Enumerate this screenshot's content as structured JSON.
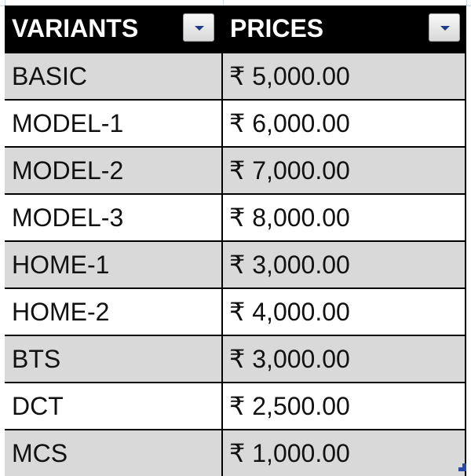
{
  "table": {
    "headers": [
      "VARIANTS",
      "PRICES"
    ],
    "rows": [
      {
        "variant": "BASIC",
        "price": "₹ 5,000.00"
      },
      {
        "variant": "MODEL-1",
        "price": "₹ 6,000.00"
      },
      {
        "variant": "MODEL-2",
        "price": "₹ 7,000.00"
      },
      {
        "variant": "MODEL-3",
        "price": "₹ 8,000.00"
      },
      {
        "variant": "HOME-1",
        "price": "₹ 3,000.00"
      },
      {
        "variant": "HOME-2",
        "price": "₹ 4,000.00"
      },
      {
        "variant": "BTS",
        "price": "₹ 3,000.00"
      },
      {
        "variant": "DCT",
        "price": "₹ 2,500.00"
      },
      {
        "variant": "MCS",
        "price": "₹ 1,000.00"
      }
    ]
  },
  "colors": {
    "header_bg": "#000000",
    "band_bg": "#d9d9d9",
    "filter_arrow": "#1f3c88"
  }
}
